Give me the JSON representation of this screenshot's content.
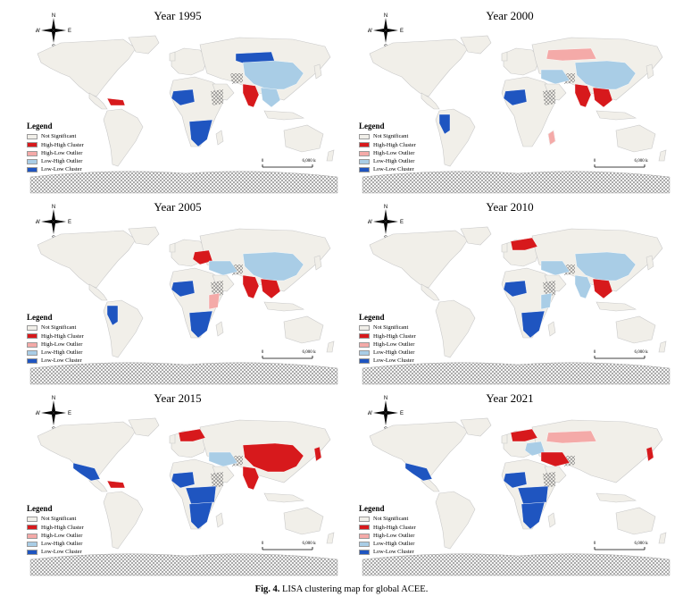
{
  "figure": {
    "label": "Fig. 4.",
    "text": "LISA clustering map for global ACEE."
  },
  "compass": {
    "n": "N",
    "s": "S",
    "e": "E",
    "w": "W"
  },
  "legend": {
    "title": "Legend",
    "items": [
      {
        "label": "Not Significant",
        "color": "#f1efe9"
      },
      {
        "label": "High-High Cluster",
        "color": "#d7191c"
      },
      {
        "label": "High-Low Outlier",
        "color": "#f4aaa8"
      },
      {
        "label": "Low-High Outlier",
        "color": "#a9cde6"
      },
      {
        "label": "Low-Low Cluster",
        "color": "#1f55c0"
      }
    ]
  },
  "scale": {
    "zero": "0",
    "max": "6,000 km"
  },
  "colors": {
    "land": "#f1efe9",
    "outline": "#c9c9c9",
    "hatch": "#777777",
    "hh": "#d7191c",
    "hl": "#f4aaa8",
    "lh": "#a9cde6",
    "ll": "#1f55c0"
  },
  "panels": [
    {
      "title": "Year 1995",
      "regions": [
        {
          "name": "mongolia",
          "c": "ll"
        },
        {
          "name": "china",
          "c": "lh"
        },
        {
          "name": "india",
          "c": "hh"
        },
        {
          "name": "west-africa",
          "c": "ll"
        },
        {
          "name": "southern-africa",
          "c": "ll"
        },
        {
          "name": "caribbean",
          "c": "hh"
        },
        {
          "name": "central-america",
          "c": "ll"
        },
        {
          "name": "se-asia",
          "c": "lh"
        }
      ]
    },
    {
      "title": "Year 2000",
      "regions": [
        {
          "name": "russia-south",
          "c": "hl"
        },
        {
          "name": "china",
          "c": "lh"
        },
        {
          "name": "india",
          "c": "hh"
        },
        {
          "name": "se-asia",
          "c": "hh"
        },
        {
          "name": "west-africa",
          "c": "ll"
        },
        {
          "name": "central-america",
          "c": "ll"
        },
        {
          "name": "andes",
          "c": "ll"
        },
        {
          "name": "madagascar",
          "c": "hl"
        },
        {
          "name": "middle-east",
          "c": "lh"
        }
      ]
    },
    {
      "title": "Year 2005",
      "regions": [
        {
          "name": "china",
          "c": "lh"
        },
        {
          "name": "india",
          "c": "hh"
        },
        {
          "name": "se-asia",
          "c": "hh"
        },
        {
          "name": "europe-east",
          "c": "hh"
        },
        {
          "name": "middle-east",
          "c": "lh"
        },
        {
          "name": "west-africa",
          "c": "ll"
        },
        {
          "name": "central-america",
          "c": "ll"
        },
        {
          "name": "andes",
          "c": "ll"
        },
        {
          "name": "southern-africa",
          "c": "ll"
        },
        {
          "name": "east-africa",
          "c": "hl"
        }
      ]
    },
    {
      "title": "Year 2010",
      "regions": [
        {
          "name": "china",
          "c": "lh"
        },
        {
          "name": "india",
          "c": "lh"
        },
        {
          "name": "se-asia",
          "c": "hh"
        },
        {
          "name": "europe-north",
          "c": "hh"
        },
        {
          "name": "middle-east",
          "c": "lh"
        },
        {
          "name": "west-africa",
          "c": "ll"
        },
        {
          "name": "central-america",
          "c": "ll"
        },
        {
          "name": "southern-africa",
          "c": "ll"
        },
        {
          "name": "east-africa",
          "c": "lh"
        }
      ]
    },
    {
      "title": "Year 2015",
      "regions": [
        {
          "name": "china",
          "c": "hh"
        },
        {
          "name": "india",
          "c": "hh"
        },
        {
          "name": "europe-north",
          "c": "hh"
        },
        {
          "name": "japan",
          "c": "hh"
        },
        {
          "name": "middle-east",
          "c": "lh"
        },
        {
          "name": "mexico",
          "c": "ll"
        },
        {
          "name": "caribbean",
          "c": "hh"
        },
        {
          "name": "africa-central",
          "c": "ll"
        },
        {
          "name": "southern-africa",
          "c": "ll"
        },
        {
          "name": "west-africa",
          "c": "ll"
        }
      ]
    },
    {
      "title": "Year 2021",
      "regions": [
        {
          "name": "russia-south",
          "c": "hl"
        },
        {
          "name": "europe-north",
          "c": "hh"
        },
        {
          "name": "europe-east",
          "c": "lh"
        },
        {
          "name": "middle-east",
          "c": "hh"
        },
        {
          "name": "japan",
          "c": "hh"
        },
        {
          "name": "mexico",
          "c": "ll"
        },
        {
          "name": "africa-central",
          "c": "ll"
        },
        {
          "name": "southern-africa",
          "c": "ll"
        },
        {
          "name": "west-africa",
          "c": "ll"
        }
      ]
    }
  ]
}
